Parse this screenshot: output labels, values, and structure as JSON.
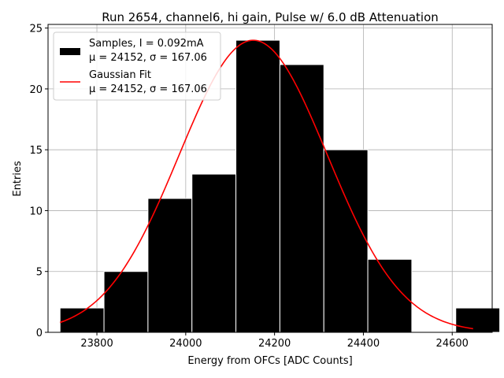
{
  "chart_data": {
    "type": "bar",
    "title": "Run 2654, channel6, hi gain, Pulse w/ 6.0 dB Attenuation",
    "xlabel": "Energy from OFCs [ADC Counts]",
    "ylabel": "Entries",
    "xlim": [
      23690,
      24690
    ],
    "ylim": [
      0,
      25.3
    ],
    "grid": true,
    "xticks": [
      23800,
      24000,
      24200,
      24400,
      24600
    ],
    "xtick_labels": [
      "23800",
      "24000",
      "24200",
      "24400",
      "24600"
    ],
    "yticks": [
      0,
      5,
      10,
      15,
      20,
      25
    ],
    "ytick_labels": [
      "0",
      "5",
      "10",
      "15",
      "20",
      "25"
    ],
    "histogram": {
      "name": "Samples, I = 0.092mA",
      "stats": "μ = 24152, σ = 167.06",
      "color": "#000000",
      "edge_color": "#ffffff",
      "bins": [
        {
          "x0": 23717,
          "x1": 23816,
          "count": 2
        },
        {
          "x0": 23816,
          "x1": 23915,
          "count": 5
        },
        {
          "x0": 23915,
          "x1": 24014,
          "count": 11
        },
        {
          "x0": 24014,
          "x1": 24113,
          "count": 13
        },
        {
          "x0": 24113,
          "x1": 24212,
          "count": 24
        },
        {
          "x0": 24212,
          "x1": 24311,
          "count": 22
        },
        {
          "x0": 24311,
          "x1": 24410,
          "count": 15
        },
        {
          "x0": 24410,
          "x1": 24509,
          "count": 6
        },
        {
          "x0": 24509,
          "x1": 24608,
          "count": 0
        },
        {
          "x0": 24608,
          "x1": 24707,
          "count": 2
        }
      ]
    },
    "fit": {
      "name": "Gaussian Fit",
      "stats": "μ = 24152, σ = 167.06",
      "color": "#ff0000",
      "mu": 24152,
      "sigma": 167.06,
      "amplitude": 24,
      "x_range": [
        23717,
        24647
      ]
    },
    "legend_position": "upper-left"
  }
}
